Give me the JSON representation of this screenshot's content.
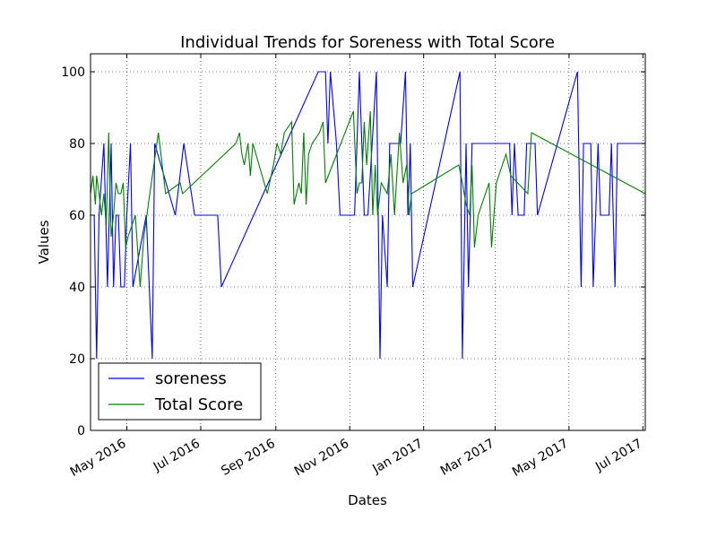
{
  "chart_data": {
    "type": "line",
    "title": "Individual Trends for Soreness with Total Score",
    "xlabel": "Dates",
    "ylabel": "Values",
    "xlim": [
      "2016-04-01",
      "2017-07-03"
    ],
    "ylim": [
      0,
      105
    ],
    "yticks": [
      0,
      20,
      40,
      60,
      80,
      100
    ],
    "xticks": [
      {
        "date": "2016-05-01",
        "label": "May 2016"
      },
      {
        "date": "2016-07-01",
        "label": "Jul 2016"
      },
      {
        "date": "2016-09-01",
        "label": "Sep 2016"
      },
      {
        "date": "2016-11-01",
        "label": "Nov 2016"
      },
      {
        "date": "2017-01-01",
        "label": "Jan 2017"
      },
      {
        "date": "2017-03-01",
        "label": "Mar 2017"
      },
      {
        "date": "2017-05-01",
        "label": "May 2017"
      },
      {
        "date": "2017-07-01",
        "label": "Jul 2017"
      }
    ],
    "grid": true,
    "legend_position": "lower-left",
    "series": [
      {
        "name": "soreness",
        "color": "#0000ff",
        "points": [
          [
            "2016-04-01",
            60
          ],
          [
            "2016-04-04",
            60
          ],
          [
            "2016-04-06",
            20
          ],
          [
            "2016-04-08",
            60
          ],
          [
            "2016-04-12",
            80
          ],
          [
            "2016-04-15",
            40
          ],
          [
            "2016-04-18",
            80
          ],
          [
            "2016-04-20",
            40
          ],
          [
            "2016-04-22",
            60
          ],
          [
            "2016-04-24",
            60
          ],
          [
            "2016-04-26",
            40
          ],
          [
            "2016-04-29",
            40
          ],
          [
            "2016-05-01",
            60
          ],
          [
            "2016-05-04",
            80
          ],
          [
            "2016-05-06",
            40
          ],
          [
            "2016-05-17",
            60
          ],
          [
            "2016-05-22",
            20
          ],
          [
            "2016-05-24",
            80
          ],
          [
            "2016-06-10",
            60
          ],
          [
            "2016-06-17",
            80
          ],
          [
            "2016-06-26",
            60
          ],
          [
            "2016-07-15",
            60
          ],
          [
            "2016-07-18",
            40
          ],
          [
            "2016-10-06",
            100
          ],
          [
            "2016-10-12",
            100
          ],
          [
            "2016-10-14",
            80
          ],
          [
            "2016-10-16",
            100
          ],
          [
            "2016-10-21",
            80
          ],
          [
            "2016-10-24",
            60
          ],
          [
            "2016-11-05",
            60
          ],
          [
            "2016-11-09",
            100
          ],
          [
            "2016-11-13",
            60
          ],
          [
            "2016-11-16",
            60
          ],
          [
            "2016-11-23",
            100
          ],
          [
            "2016-11-26",
            20
          ],
          [
            "2016-11-28",
            60
          ],
          [
            "2016-12-02",
            40
          ],
          [
            "2016-12-04",
            80
          ],
          [
            "2016-12-13",
            80
          ],
          [
            "2016-12-17",
            100
          ],
          [
            "2016-12-19",
            60
          ],
          [
            "2016-12-21",
            80
          ],
          [
            "2016-12-23",
            40
          ],
          [
            "2017-01-31",
            100
          ],
          [
            "2017-02-02",
            20
          ],
          [
            "2017-02-05",
            80
          ],
          [
            "2017-02-07",
            40
          ],
          [
            "2017-02-10",
            80
          ],
          [
            "2017-03-13",
            80
          ],
          [
            "2017-03-15",
            60
          ],
          [
            "2017-03-17",
            80
          ],
          [
            "2017-03-20",
            60
          ],
          [
            "2017-03-25",
            60
          ],
          [
            "2017-03-27",
            80
          ],
          [
            "2017-04-03",
            80
          ],
          [
            "2017-04-05",
            60
          ],
          [
            "2017-05-08",
            100
          ],
          [
            "2017-05-11",
            40
          ],
          [
            "2017-05-13",
            80
          ],
          [
            "2017-05-19",
            80
          ],
          [
            "2017-05-21",
            40
          ],
          [
            "2017-05-23",
            60
          ],
          [
            "2017-05-25",
            80
          ],
          [
            "2017-05-27",
            60
          ],
          [
            "2017-06-03",
            60
          ],
          [
            "2017-06-05",
            80
          ],
          [
            "2017-06-08",
            40
          ],
          [
            "2017-06-10",
            80
          ],
          [
            "2017-07-03",
            80
          ]
        ]
      },
      {
        "name": "Total Score",
        "color": "#008000",
        "points": [
          [
            "2016-04-01",
            66
          ],
          [
            "2016-04-03",
            71
          ],
          [
            "2016-04-05",
            63
          ],
          [
            "2016-04-06",
            71
          ],
          [
            "2016-04-08",
            66
          ],
          [
            "2016-04-10",
            60
          ],
          [
            "2016-04-12",
            66
          ],
          [
            "2016-04-14",
            57
          ],
          [
            "2016-04-16",
            83
          ],
          [
            "2016-04-18",
            54
          ],
          [
            "2016-04-20",
            60
          ],
          [
            "2016-04-22",
            69
          ],
          [
            "2016-04-24",
            66
          ],
          [
            "2016-04-26",
            66
          ],
          [
            "2016-04-28",
            69
          ],
          [
            "2016-04-30",
            51
          ],
          [
            "2016-05-02",
            54
          ],
          [
            "2016-05-05",
            57
          ],
          [
            "2016-05-08",
            60
          ],
          [
            "2016-05-12",
            40
          ],
          [
            "2016-05-15",
            54
          ],
          [
            "2016-05-27",
            83
          ],
          [
            "2016-06-02",
            66
          ],
          [
            "2016-06-14",
            69
          ],
          [
            "2016-06-16",
            66
          ],
          [
            "2016-07-30",
            80
          ],
          [
            "2016-08-02",
            83
          ],
          [
            "2016-08-04",
            77
          ],
          [
            "2016-08-06",
            74
          ],
          [
            "2016-08-09",
            80
          ],
          [
            "2016-08-11",
            71
          ],
          [
            "2016-08-13",
            80
          ],
          [
            "2016-08-25",
            66
          ],
          [
            "2016-08-30",
            74
          ],
          [
            "2016-09-02",
            80
          ],
          [
            "2016-09-05",
            77
          ],
          [
            "2016-09-08",
            83
          ],
          [
            "2016-09-14",
            86
          ],
          [
            "2016-09-16",
            63
          ],
          [
            "2016-09-20",
            69
          ],
          [
            "2016-09-22",
            66
          ],
          [
            "2016-09-24",
            83
          ],
          [
            "2016-09-26",
            63
          ],
          [
            "2016-09-28",
            77
          ],
          [
            "2016-10-01",
            80
          ],
          [
            "2016-10-07",
            83
          ],
          [
            "2016-10-10",
            86
          ],
          [
            "2016-10-12",
            69
          ],
          [
            "2016-11-04",
            89
          ],
          [
            "2016-11-07",
            66
          ],
          [
            "2016-11-09",
            69
          ],
          [
            "2016-11-11",
            69
          ],
          [
            "2016-11-13",
            86
          ],
          [
            "2016-11-15",
            74
          ],
          [
            "2016-11-18",
            89
          ],
          [
            "2016-11-20",
            60
          ],
          [
            "2016-11-22",
            74
          ],
          [
            "2016-11-24",
            60
          ],
          [
            "2016-11-27",
            69
          ],
          [
            "2016-12-02",
            66
          ],
          [
            "2016-12-05",
            77
          ],
          [
            "2016-12-08",
            60
          ],
          [
            "2016-12-12",
            83
          ],
          [
            "2016-12-15",
            69
          ],
          [
            "2016-12-18",
            74
          ],
          [
            "2016-12-20",
            60
          ],
          [
            "2016-12-22",
            66
          ],
          [
            "2017-01-30",
            74
          ],
          [
            "2017-02-02",
            69
          ],
          [
            "2017-02-05",
            63
          ],
          [
            "2017-02-08",
            60
          ],
          [
            "2017-02-10",
            74
          ],
          [
            "2017-02-12",
            51
          ],
          [
            "2017-02-15",
            60
          ],
          [
            "2017-02-21",
            66
          ],
          [
            "2017-02-24",
            69
          ],
          [
            "2017-02-26",
            51
          ],
          [
            "2017-03-02",
            69
          ],
          [
            "2017-03-07",
            74
          ],
          [
            "2017-03-10",
            77
          ],
          [
            "2017-03-14",
            71
          ],
          [
            "2017-03-28",
            66
          ],
          [
            "2017-03-31",
            83
          ],
          [
            "2017-07-03",
            66
          ]
        ]
      }
    ]
  }
}
